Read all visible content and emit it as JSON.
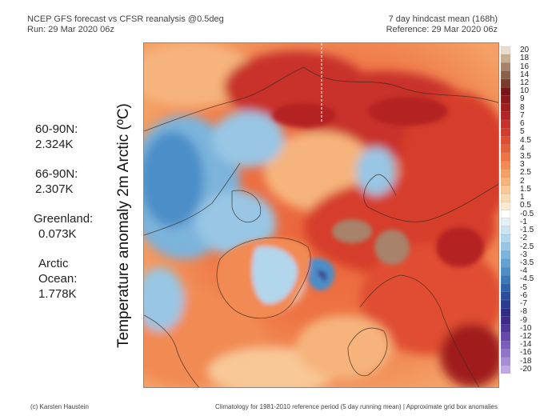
{
  "header": {
    "title_line1": "NCEP GFS forecast vs CFSR reanalysis @0.5deg",
    "title_line2": "Run: 29 Mar 2020 06z",
    "right_line1": "7 day hindcast mean (168h)",
    "right_line2": "Reference: 29 Mar 2020 06z"
  },
  "stats": [
    {
      "label": "60-90N:",
      "value": "2.324K"
    },
    {
      "label": "66-90N:",
      "value": "2.307K"
    },
    {
      "label": "Greenland:",
      "value": "0.073K"
    },
    {
      "label": "Arctic Ocean:",
      "label_line1": "Arctic",
      "label_line2": "Ocean:",
      "value": "1.778K"
    }
  ],
  "axis_label": "Temperature anomaly 2m Arctic (ºC)",
  "colorbar": {
    "labels": [
      "20",
      "18",
      "16",
      "14",
      "12",
      "10",
      "9",
      "8",
      "7",
      "6",
      "5",
      "4.5",
      "4",
      "3.5",
      "3",
      "2.5",
      "2",
      "1.5",
      "1",
      "0.5",
      "-0.5",
      "-1",
      "-1.5",
      "-2",
      "-2.5",
      "-3",
      "-3.5",
      "-4",
      "-4.5",
      "-5",
      "-6",
      "-7",
      "-8",
      "-9",
      "-10",
      "-12",
      "-14",
      "-16",
      "-18",
      "-20"
    ],
    "colors": [
      "#e8dccc",
      "#c9ae92",
      "#a8826a",
      "#8c6048",
      "#7a3c2c",
      "#7a1418",
      "#8c1a1c",
      "#a01e1e",
      "#b42424",
      "#c8302a",
      "#d63c2c",
      "#e04e32",
      "#e8603a",
      "#ee7444",
      "#f28a52",
      "#f4a066",
      "#f6b47c",
      "#f8c896",
      "#fadab0",
      "#fcead0",
      "#ffffff",
      "#e4f0f8",
      "#cce4f2",
      "#b2d6ec",
      "#98c6e4",
      "#7cb4dc",
      "#62a2d2",
      "#4c8ec8",
      "#3a78bc",
      "#2c62ae",
      "#2a4ca0",
      "#2c3a92",
      "#302c84",
      "#3c2c86",
      "#503898",
      "#6448aa",
      "#7a5cbc",
      "#9074cc",
      "#a88cd8",
      "#c0a8e4"
    ]
  },
  "footer": {
    "left": "(c) Karsten Haustein",
    "right": "Climatology for 1981-2010 reference period (5 day running mean) | Approximate grid box anomalies"
  },
  "map": {
    "title": "Arctic polar stereographic 2m temperature anomaly"
  }
}
